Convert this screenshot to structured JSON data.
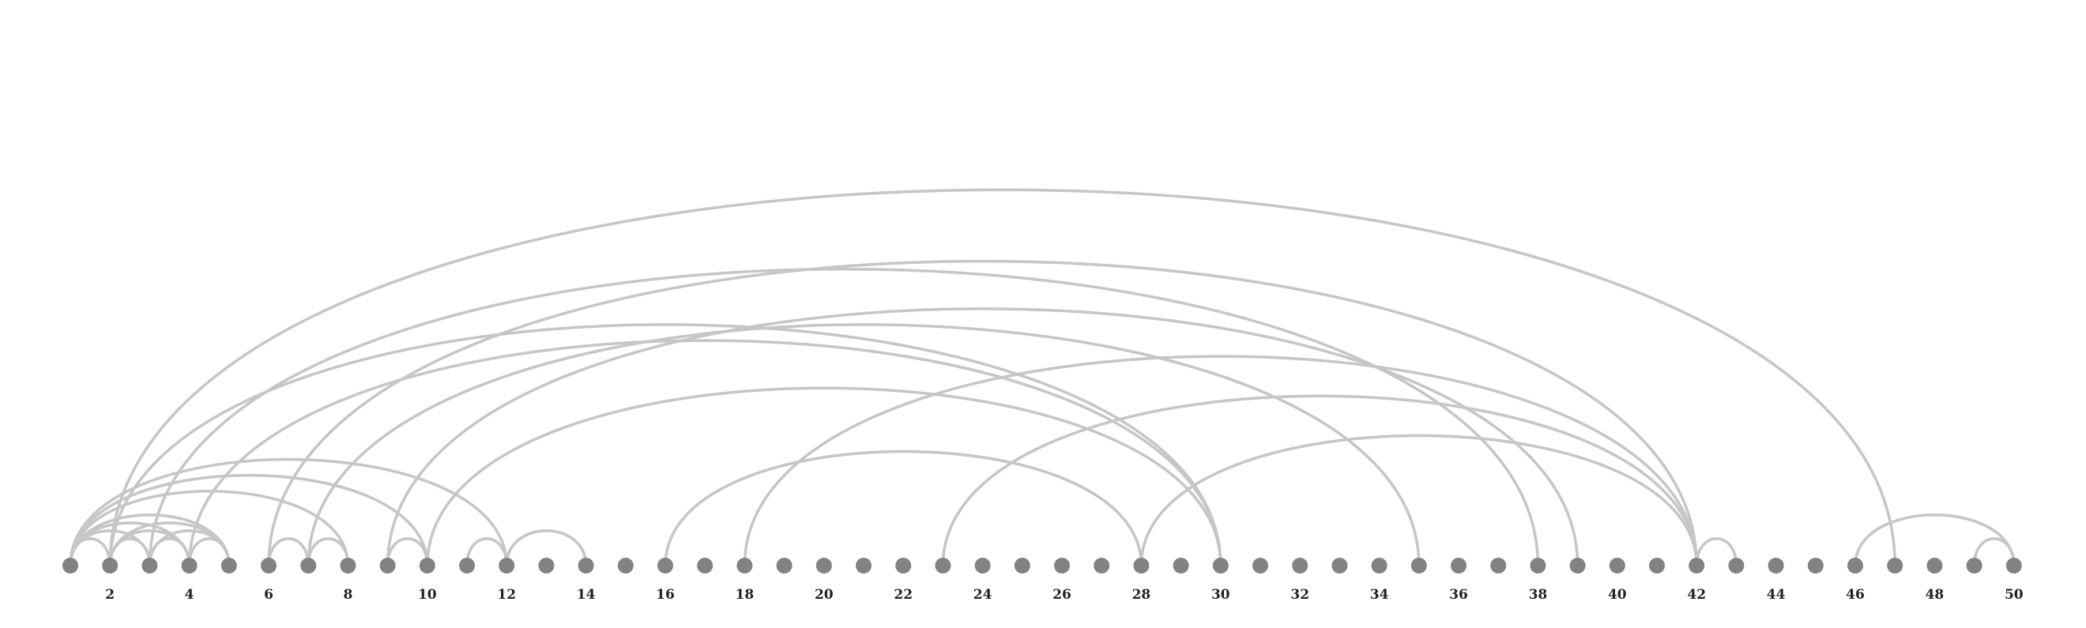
{
  "diagram": {
    "type": "arc",
    "nodes": [
      1,
      2,
      3,
      4,
      5,
      6,
      7,
      8,
      9,
      10,
      11,
      12,
      13,
      14,
      15,
      16,
      17,
      18,
      19,
      20,
      21,
      22,
      23,
      24,
      25,
      26,
      27,
      28,
      29,
      30,
      31,
      32,
      33,
      34,
      35,
      36,
      37,
      38,
      39,
      40,
      41,
      42,
      43,
      44,
      45,
      46,
      47,
      48,
      49,
      50
    ],
    "tick_labels": [
      "2",
      "4",
      "6",
      "8",
      "10",
      "12",
      "14",
      "16",
      "18",
      "20",
      "22",
      "24",
      "26",
      "28",
      "30",
      "32",
      "34",
      "36",
      "38",
      "40",
      "42",
      "44",
      "46",
      "48",
      "50"
    ],
    "edges": [
      [
        1,
        2
      ],
      [
        1,
        3
      ],
      [
        1,
        4
      ],
      [
        1,
        5
      ],
      [
        1,
        8
      ],
      [
        1,
        10
      ],
      [
        1,
        12
      ],
      [
        2,
        3
      ],
      [
        2,
        4
      ],
      [
        2,
        5
      ],
      [
        2,
        30
      ],
      [
        2,
        47
      ],
      [
        3,
        4
      ],
      [
        3,
        5
      ],
      [
        3,
        38
      ],
      [
        4,
        5
      ],
      [
        4,
        30
      ],
      [
        6,
        7
      ],
      [
        6,
        42
      ],
      [
        7,
        8
      ],
      [
        7,
        35
      ],
      [
        9,
        10
      ],
      [
        9,
        39
      ],
      [
        10,
        30
      ],
      [
        11,
        12
      ],
      [
        12,
        14
      ],
      [
        16,
        28
      ],
      [
        18,
        42
      ],
      [
        23,
        42
      ],
      [
        28,
        42
      ],
      [
        42,
        43
      ],
      [
        46,
        50
      ],
      [
        49,
        50
      ]
    ],
    "colors": {
      "node": "#828282",
      "edge": "#c6c6c6",
      "label": "#222222"
    }
  }
}
